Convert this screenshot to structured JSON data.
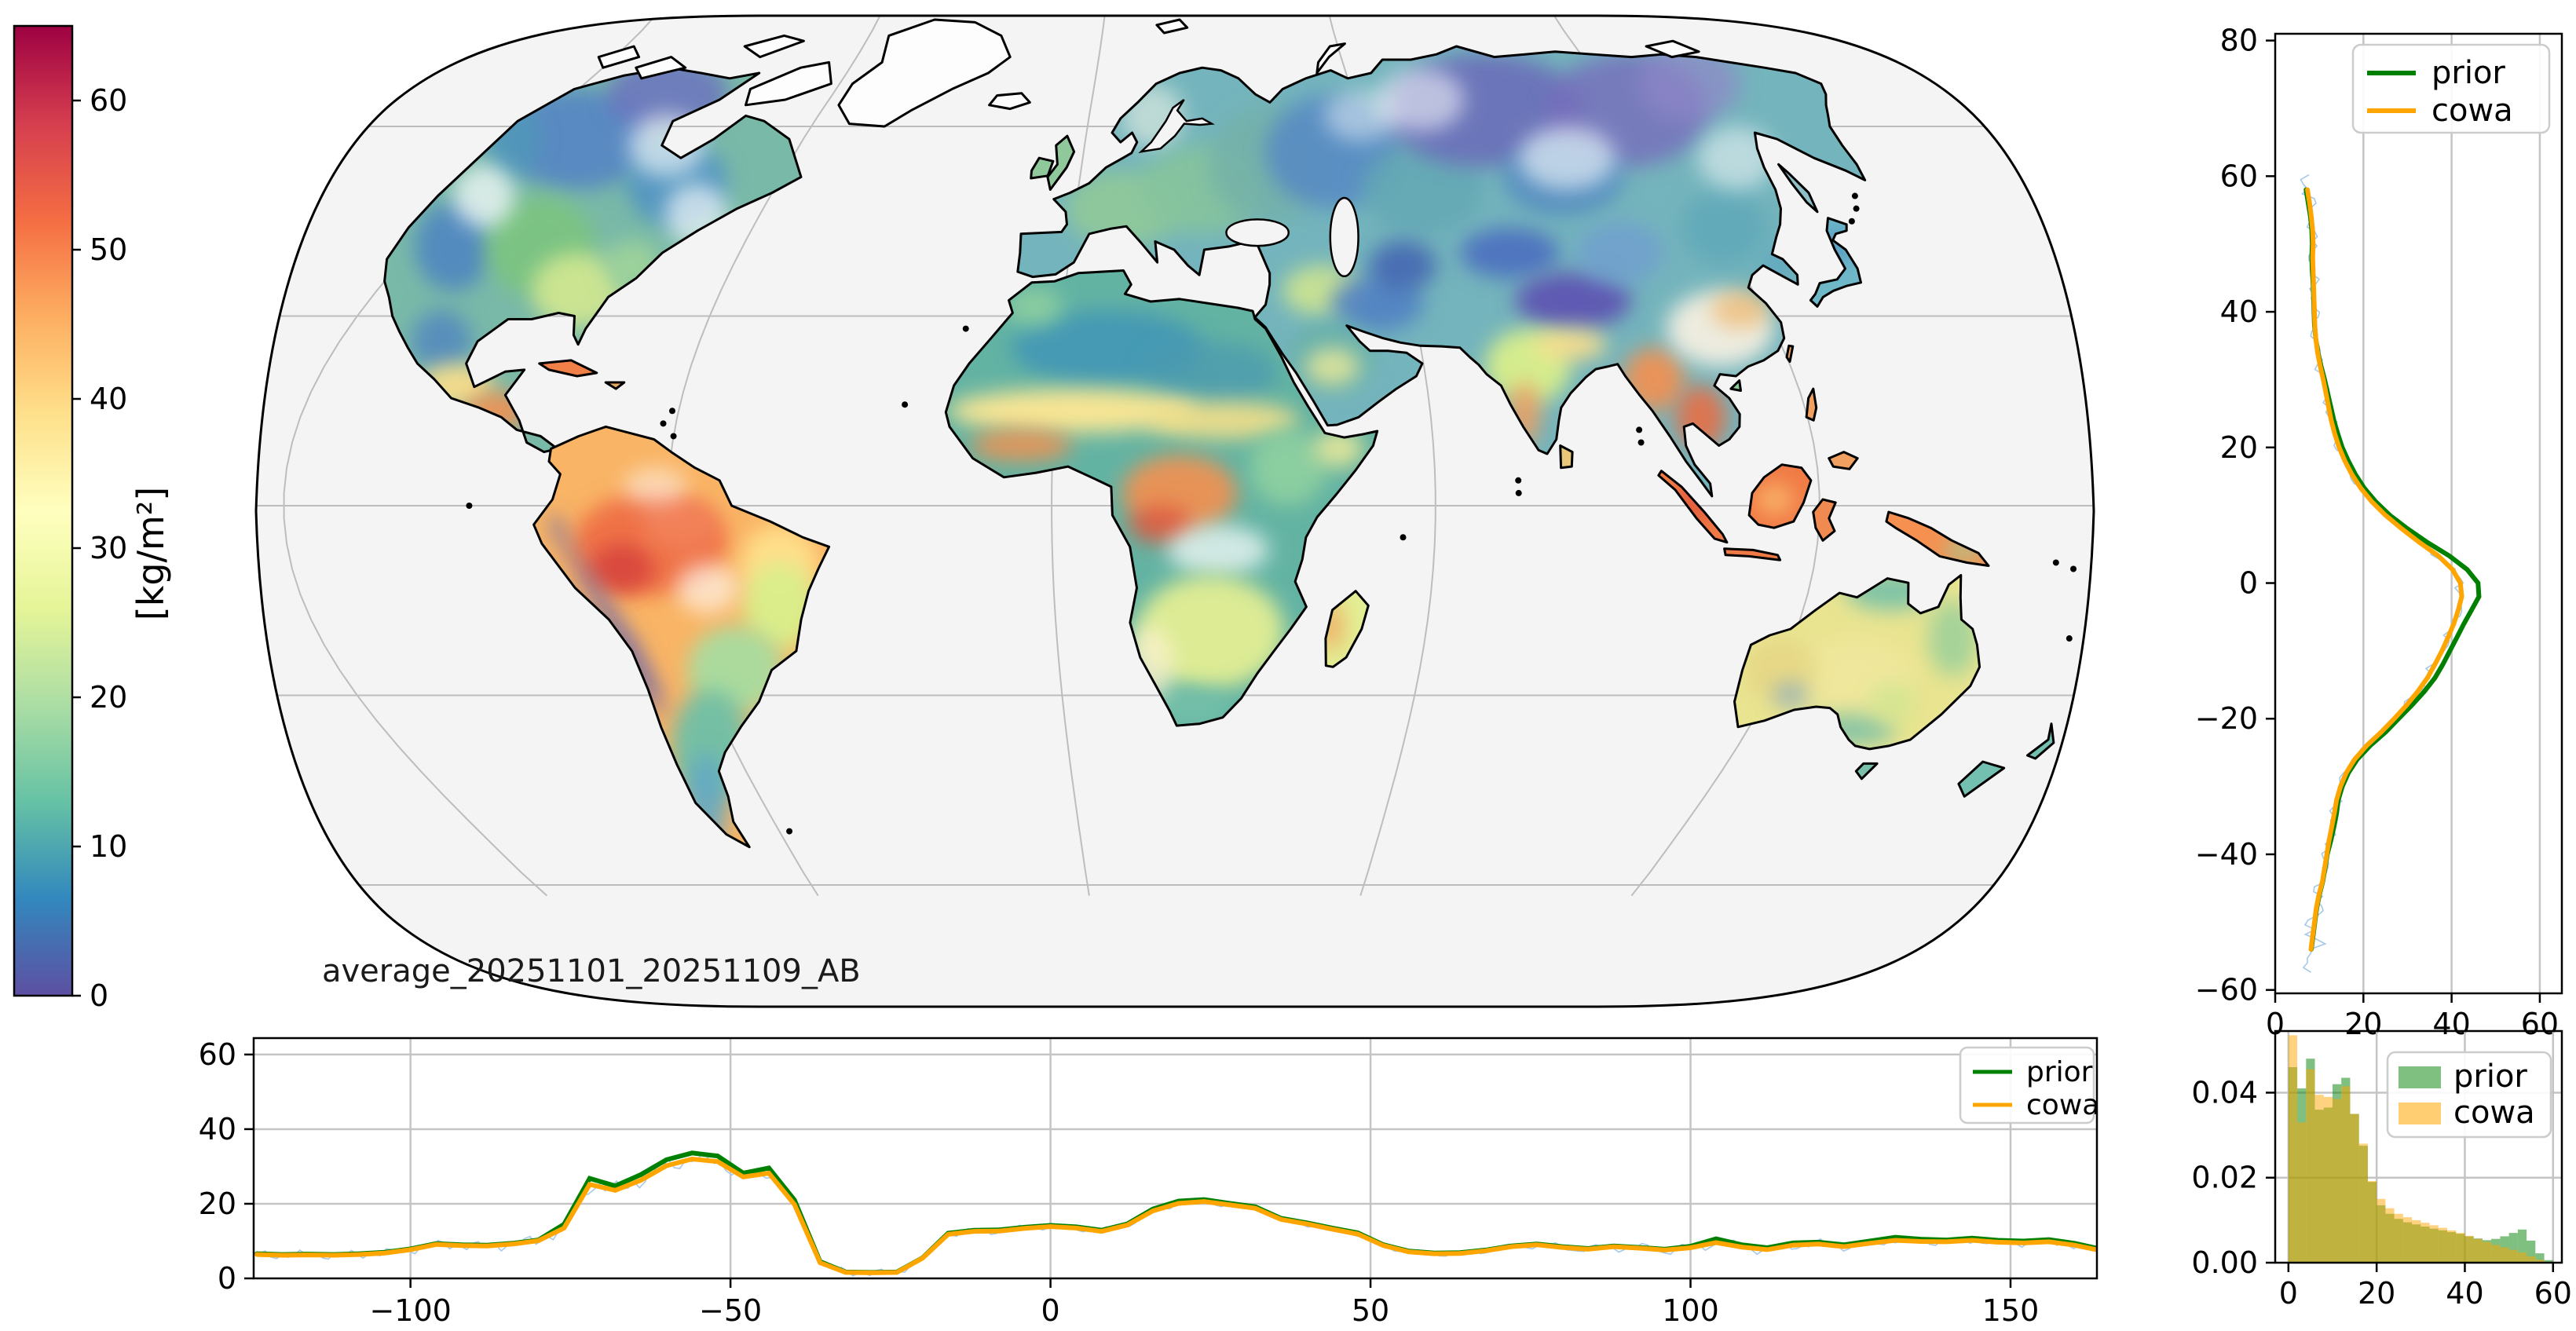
{
  "legend": {
    "prior": "prior",
    "cowa": "cowa"
  },
  "colors": {
    "prior": "#008000",
    "cowa": "#ffa500",
    "raw": "#a6c8e8",
    "grid": "#c4c4c4",
    "map_grid": "#bdbdbd",
    "ocean": "#f4f4f4",
    "coast": "#000000"
  },
  "colorbar": {
    "label": "[kg/m²]",
    "ticks": [
      0,
      10,
      20,
      30,
      40,
      50,
      60
    ],
    "vmin": 0,
    "vmax": 65,
    "colormap": "Spectral_r",
    "gradient_stops": [
      "#5e4fa2",
      "#3288bd",
      "#66c2a5",
      "#abdda4",
      "#e6f598",
      "#ffffbf",
      "#fee08b",
      "#fdae61",
      "#f46d43",
      "#d53e4f",
      "#9e0142"
    ]
  },
  "map": {
    "annotation": "average_20251101_20251109_AB",
    "extent": {
      "lon": [
        -125,
        165
      ],
      "lat": [
        -60,
        80
      ]
    },
    "graticule": {
      "parallels": [
        -60,
        -30,
        0,
        30,
        60
      ],
      "meridians": [
        -120,
        -60,
        0,
        60,
        120
      ]
    }
  },
  "lat_panel": {
    "xticks": [
      0,
      20,
      40,
      60
    ],
    "yticks": [
      80,
      60,
      40,
      20,
      0,
      -20,
      -40,
      -60
    ],
    "xlim": [
      0,
      65
    ],
    "ylim": [
      -60.5,
      81
    ]
  },
  "lon_panel": {
    "xticks": [
      -100,
      -50,
      0,
      50,
      100,
      150
    ],
    "yticks": [
      0,
      20,
      40,
      60
    ],
    "xlim": [
      -124.5,
      163.5
    ],
    "ylim": [
      0,
      64.4
    ]
  },
  "hist_panel": {
    "xticks": [
      0,
      20,
      40,
      60
    ],
    "yticks": [
      0,
      0.02,
      0.04
    ],
    "xlim": [
      -3,
      62
    ],
    "ylim": [
      0,
      0.0545
    ],
    "bin_width": 2
  },
  "chart_data": [
    {
      "type": "heatmap",
      "name": "global_map",
      "title": "average_20251101_20251109_AB",
      "value_label": "[kg/m²]",
      "value_range": [
        0,
        65
      ],
      "colormap": "Spectral_r",
      "colorbar_ticks": [
        0,
        10,
        20,
        30,
        40,
        50,
        60
      ],
      "lon_range": [
        -125,
        165
      ],
      "lat_range": [
        -60,
        80
      ],
      "description": "Average total column water vapour over land, Spectral_r colormap, gray ocean, black coastlines"
    },
    {
      "type": "line",
      "name": "latitude_profile",
      "axes": "value (kg/m²) on x, latitude on y",
      "xticks": [
        0,
        20,
        40,
        60
      ],
      "yticks": [
        80,
        60,
        40,
        20,
        0,
        -20,
        -40,
        -60
      ],
      "legend_position": "top-right",
      "lat": [
        -54,
        -52,
        -50,
        -48,
        -46,
        -44,
        -42,
        -40,
        -38,
        -36,
        -34,
        -32,
        -30,
        -28,
        -26,
        -24,
        -22,
        -20,
        -18,
        -16,
        -14,
        -12,
        -10,
        -8,
        -6,
        -4,
        -2,
        0,
        2,
        4,
        6,
        8,
        10,
        12,
        14,
        16,
        18,
        20,
        22,
        24,
        26,
        28,
        30,
        32,
        34,
        36,
        38,
        40,
        42,
        44,
        46,
        48,
        50,
        52,
        54,
        56,
        58
      ],
      "series": [
        {
          "name": "prior",
          "color": "#008000",
          "values": [
            8.2,
            8.6,
            9.0,
            9.4,
            10.0,
            10.8,
            11.3,
            11.8,
            12.6,
            13.3,
            13.9,
            14.3,
            15.2,
            16.6,
            18.6,
            21.5,
            25.0,
            28.0,
            31.0,
            33.8,
            36.2,
            38.0,
            39.6,
            41.2,
            42.8,
            44.5,
            46.2,
            46.0,
            43.5,
            39.5,
            34.5,
            30.0,
            26.0,
            22.8,
            20.2,
            18.2,
            16.6,
            15.2,
            14.2,
            13.3,
            12.6,
            11.9,
            11.2,
            10.4,
            9.7,
            9.2,
            8.9,
            8.8,
            8.7,
            8.6,
            8.4,
            8.3,
            8.4,
            8.3,
            8.0,
            7.5,
            7.0
          ]
        },
        {
          "name": "cowa",
          "color": "#ffa500",
          "values": [
            8.1,
            8.5,
            8.9,
            9.3,
            9.9,
            10.7,
            11.2,
            11.7,
            12.2,
            12.8,
            13.4,
            13.9,
            14.8,
            16.1,
            18.0,
            20.7,
            24.0,
            27.0,
            29.8,
            32.3,
            34.5,
            36.2,
            37.8,
            39.2,
            40.5,
            41.5,
            42.3,
            42.0,
            40.2,
            37.0,
            32.7,
            28.7,
            25.0,
            21.9,
            19.4,
            17.4,
            15.8,
            14.5,
            13.5,
            12.7,
            12.1,
            11.5,
            10.9,
            10.2,
            9.6,
            9.2,
            9.0,
            8.9,
            8.8,
            8.7,
            8.6,
            8.5,
            8.6,
            8.5,
            8.2,
            7.8,
            7.3
          ]
        }
      ]
    },
    {
      "type": "line",
      "name": "longitude_profile",
      "axes": "longitude on x, value (kg/m²) on y",
      "xticks": [
        -100,
        -50,
        0,
        50,
        100,
        150
      ],
      "yticks": [
        0,
        20,
        40,
        60
      ],
      "legend_position": "top-right",
      "lon": [
        -124,
        -120,
        -116,
        -112,
        -108,
        -104,
        -100,
        -96,
        -92,
        -88,
        -84,
        -80,
        -76,
        -72,
        -68,
        -64,
        -60,
        -56,
        -52,
        -48,
        -44,
        -40,
        -36,
        -32,
        -28,
        -24,
        -20,
        -16,
        -12,
        -8,
        -4,
        0,
        4,
        8,
        12,
        16,
        20,
        24,
        28,
        32,
        36,
        40,
        44,
        48,
        52,
        56,
        60,
        64,
        68,
        72,
        76,
        80,
        84,
        88,
        92,
        96,
        100,
        104,
        108,
        112,
        116,
        120,
        124,
        128,
        132,
        136,
        140,
        144,
        148,
        152,
        156,
        160,
        164
      ],
      "series": [
        {
          "name": "prior",
          "color": "#008000",
          "values": [
            6.6,
            6.4,
            6.5,
            6.4,
            6.6,
            7.0,
            7.9,
            9.3,
            9.0,
            8.9,
            9.4,
            10.3,
            14.5,
            26.8,
            24.8,
            27.8,
            31.8,
            33.6,
            32.8,
            28.2,
            29.6,
            21.0,
            4.5,
            1.7,
            1.6,
            1.7,
            5.5,
            12.1,
            12.9,
            13.0,
            13.7,
            14.2,
            13.8,
            12.9,
            14.6,
            18.6,
            20.7,
            21.1,
            20.1,
            19.2,
            16.1,
            14.9,
            13.5,
            12.2,
            9.0,
            7.3,
            6.8,
            6.9,
            7.6,
            8.7,
            9.2,
            8.5,
            8.0,
            8.7,
            8.3,
            7.8,
            8.6,
            10.6,
            9.0,
            8.2,
            9.5,
            9.7,
            9.0,
            10.0,
            11.0,
            10.5,
            10.3,
            10.8,
            10.2,
            10.0,
            10.4,
            9.4,
            7.9
          ]
        },
        {
          "name": "cowa",
          "color": "#ffa500",
          "values": [
            6.4,
            6.2,
            6.3,
            6.2,
            6.4,
            6.8,
            7.7,
            9.1,
            8.8,
            8.7,
            9.2,
            10.1,
            13.5,
            25.2,
            23.6,
            26.3,
            30.2,
            32.0,
            31.3,
            27.2,
            28.2,
            19.8,
            4.2,
            1.6,
            1.5,
            1.6,
            5.4,
            11.8,
            12.6,
            12.7,
            13.4,
            13.9,
            13.5,
            12.6,
            14.3,
            18.1,
            20.1,
            20.6,
            19.7,
            18.8,
            15.8,
            14.6,
            13.2,
            11.9,
            8.8,
            7.1,
            6.6,
            6.7,
            7.4,
            8.5,
            9.0,
            8.3,
            7.8,
            8.5,
            8.1,
            7.6,
            8.2,
            9.6,
            8.4,
            7.7,
            8.9,
            9.2,
            8.5,
            9.4,
            10.2,
            9.9,
            9.8,
            10.2,
            9.7,
            9.5,
            9.8,
            8.9,
            7.5
          ]
        }
      ]
    },
    {
      "type": "bar",
      "name": "value_histogram",
      "bin_start": 0,
      "bin_width": 2,
      "bins": [
        0,
        2,
        4,
        6,
        8,
        10,
        12,
        14,
        16,
        18,
        20,
        22,
        24,
        26,
        28,
        30,
        32,
        34,
        36,
        38,
        40,
        42,
        44,
        46,
        48,
        50,
        52,
        54,
        56,
        58
      ],
      "yticks": [
        0,
        0.02,
        0.04
      ],
      "legend_position": "top-right",
      "series": [
        {
          "name": "prior",
          "color": "#008000",
          "values": [
            0.046,
            0.041,
            0.048,
            0.036,
            0.0365,
            0.042,
            0.0435,
            0.035,
            0.0275,
            0.019,
            0.0135,
            0.0115,
            0.0103,
            0.0095,
            0.009,
            0.0085,
            0.008,
            0.0076,
            0.0072,
            0.0068,
            0.0062,
            0.0057,
            0.0053,
            0.0056,
            0.0062,
            0.007,
            0.0078,
            0.0052,
            0.0022,
            0.0006
          ]
        },
        {
          "name": "cowa",
          "color": "#ffa500",
          "values": [
            0.0535,
            0.033,
            0.0455,
            0.0395,
            0.039,
            0.0385,
            0.0415,
            0.035,
            0.028,
            0.0192,
            0.015,
            0.0128,
            0.0115,
            0.0107,
            0.01,
            0.0094,
            0.0088,
            0.0082,
            0.0076,
            0.007,
            0.0063,
            0.0056,
            0.0049,
            0.0042,
            0.0036,
            0.003,
            0.0024,
            0.0015,
            0.0007,
            0.0002
          ]
        }
      ]
    }
  ]
}
